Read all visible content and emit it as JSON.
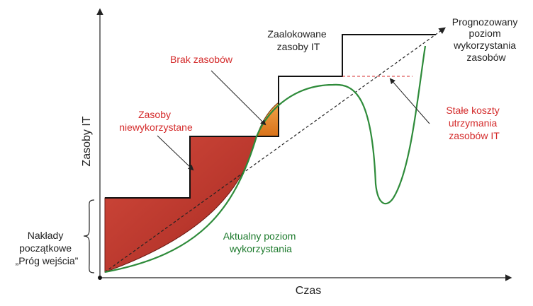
{
  "axes": {
    "x_label": "Czas",
    "y_label": "Zasoby IT"
  },
  "annotations": {
    "allocated": [
      "Zaalokowane",
      "zasoby IT"
    ],
    "forecast": [
      "Prognozowany",
      "poziom",
      "wykorzystania",
      "zasobów"
    ],
    "shortage": [
      "Brak zasobów"
    ],
    "unused": [
      "Zasoby",
      "niewykorzystane"
    ],
    "fixed_costs": [
      "Stałe koszty",
      "utrzymania",
      "zasobów IT"
    ],
    "actual": [
      "Aktualny poziom",
      "wykorzystania"
    ],
    "initial": [
      "Nakłady",
      "początkowe",
      "„Próg wejścia”"
    ]
  },
  "colors": {
    "unused_fill": "#c0392b",
    "shortage_fill": "#e8861e",
    "actual_line": "#2e8b3a",
    "red_text": "#d42b2b",
    "green_text": "#1c7a2c",
    "axis": "#222222"
  }
}
